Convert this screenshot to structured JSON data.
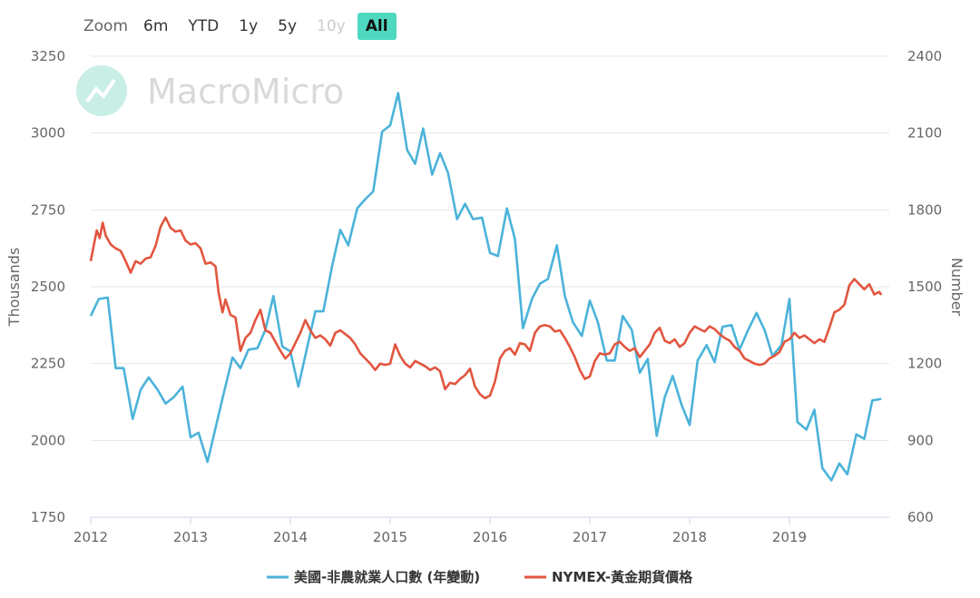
{
  "zoom": {
    "label": "Zoom",
    "buttons": [
      {
        "label": "6m",
        "state": "normal"
      },
      {
        "label": "YTD",
        "state": "normal"
      },
      {
        "label": "1y",
        "state": "normal"
      },
      {
        "label": "5y",
        "state": "normal"
      },
      {
        "label": "10y",
        "state": "disabled"
      },
      {
        "label": "All",
        "state": "active"
      }
    ]
  },
  "watermark": "MacroMicro",
  "colors": {
    "series1": "#4bb3d9",
    "series2": "#e2553f",
    "zoom_active": "#4fd8c0",
    "grid": "#e6e6e6"
  },
  "chart_data": {
    "type": "line",
    "title": "",
    "xlabel": "",
    "x_ticks": [
      "2012",
      "2013",
      "2014",
      "2015",
      "2016",
      "2017",
      "2018",
      "2019"
    ],
    "x_range": [
      2012.0,
      2020.0
    ],
    "y_left": {
      "label": "Thousands",
      "min": 1750,
      "max": 3250,
      "ticks": [
        1750,
        2000,
        2250,
        2500,
        2750,
        3000,
        3250
      ]
    },
    "y_right": {
      "label": "Number",
      "min": 600,
      "max": 2400,
      "ticks": [
        600,
        900,
        1200,
        1500,
        1800,
        2100,
        2400
      ]
    },
    "grid": true,
    "legend_position": "bottom",
    "series": [
      {
        "name": "美國-非農就業人口數 (年變動)",
        "axis": "left",
        "points": [
          [
            2012.0,
            2405
          ],
          [
            2012.08,
            2460
          ],
          [
            2012.17,
            2465
          ],
          [
            2012.25,
            2235
          ],
          [
            2012.33,
            2235
          ],
          [
            2012.42,
            2070
          ],
          [
            2012.5,
            2165
          ],
          [
            2012.58,
            2205
          ],
          [
            2012.67,
            2165
          ],
          [
            2012.75,
            2120
          ],
          [
            2012.83,
            2140
          ],
          [
            2012.92,
            2175
          ],
          [
            2013.0,
            2010
          ],
          [
            2013.08,
            2025
          ],
          [
            2013.17,
            1930
          ],
          [
            2013.25,
            2040
          ],
          [
            2013.33,
            2150
          ],
          [
            2013.42,
            2270
          ],
          [
            2013.5,
            2235
          ],
          [
            2013.58,
            2295
          ],
          [
            2013.67,
            2300
          ],
          [
            2013.75,
            2360
          ],
          [
            2013.83,
            2470
          ],
          [
            2013.92,
            2305
          ],
          [
            2014.0,
            2290
          ],
          [
            2014.08,
            2175
          ],
          [
            2014.17,
            2305
          ],
          [
            2014.25,
            2420
          ],
          [
            2014.33,
            2420
          ],
          [
            2014.42,
            2570
          ],
          [
            2014.5,
            2685
          ],
          [
            2014.58,
            2635
          ],
          [
            2014.67,
            2755
          ],
          [
            2014.75,
            2785
          ],
          [
            2014.83,
            2810
          ],
          [
            2014.92,
            3005
          ],
          [
            2015.0,
            3025
          ],
          [
            2015.08,
            3130
          ],
          [
            2015.17,
            2945
          ],
          [
            2015.25,
            2900
          ],
          [
            2015.33,
            3015
          ],
          [
            2015.42,
            2865
          ],
          [
            2015.5,
            2935
          ],
          [
            2015.58,
            2870
          ],
          [
            2015.67,
            2720
          ],
          [
            2015.75,
            2770
          ],
          [
            2015.83,
            2720
          ],
          [
            2015.92,
            2725
          ],
          [
            2016.0,
            2610
          ],
          [
            2016.08,
            2600
          ],
          [
            2016.17,
            2755
          ],
          [
            2016.25,
            2655
          ],
          [
            2016.33,
            2365
          ],
          [
            2016.42,
            2460
          ],
          [
            2016.5,
            2510
          ],
          [
            2016.58,
            2525
          ],
          [
            2016.67,
            2635
          ],
          [
            2016.75,
            2470
          ],
          [
            2016.83,
            2385
          ],
          [
            2016.92,
            2340
          ],
          [
            2017.0,
            2455
          ],
          [
            2017.08,
            2385
          ],
          [
            2017.17,
            2260
          ],
          [
            2017.25,
            2260
          ],
          [
            2017.33,
            2405
          ],
          [
            2017.42,
            2360
          ],
          [
            2017.5,
            2220
          ],
          [
            2017.58,
            2265
          ],
          [
            2017.67,
            2015
          ],
          [
            2017.75,
            2140
          ],
          [
            2017.83,
            2210
          ],
          [
            2017.92,
            2115
          ],
          [
            2018.0,
            2050
          ],
          [
            2018.08,
            2260
          ],
          [
            2018.17,
            2310
          ],
          [
            2018.25,
            2255
          ],
          [
            2018.33,
            2370
          ],
          [
            2018.42,
            2375
          ],
          [
            2018.5,
            2295
          ],
          [
            2018.58,
            2355
          ],
          [
            2018.67,
            2415
          ],
          [
            2018.75,
            2360
          ],
          [
            2018.83,
            2275
          ],
          [
            2018.92,
            2310
          ],
          [
            2019.0,
            2460
          ],
          [
            2019.08,
            2060
          ],
          [
            2019.17,
            2035
          ],
          [
            2019.25,
            2100
          ],
          [
            2019.33,
            1910
          ],
          [
            2019.42,
            1870
          ],
          [
            2019.5,
            1925
          ],
          [
            2019.58,
            1890
          ],
          [
            2019.67,
            2020
          ],
          [
            2019.75,
            2005
          ],
          [
            2019.83,
            2130
          ],
          [
            2019.92,
            2135
          ]
        ]
      },
      {
        "name": "NYMEX-黃金期貨價格",
        "axis": "right",
        "points": [
          [
            2012.0,
            1600
          ],
          [
            2012.03,
            1660
          ],
          [
            2012.06,
            1720
          ],
          [
            2012.09,
            1690
          ],
          [
            2012.12,
            1750
          ],
          [
            2012.15,
            1700
          ],
          [
            2012.2,
            1665
          ],
          [
            2012.25,
            1650
          ],
          [
            2012.3,
            1640
          ],
          [
            2012.35,
            1600
          ],
          [
            2012.4,
            1555
          ],
          [
            2012.45,
            1600
          ],
          [
            2012.5,
            1590
          ],
          [
            2012.55,
            1610
          ],
          [
            2012.6,
            1615
          ],
          [
            2012.65,
            1660
          ],
          [
            2012.7,
            1735
          ],
          [
            2012.75,
            1770
          ],
          [
            2012.8,
            1730
          ],
          [
            2012.85,
            1715
          ],
          [
            2012.9,
            1720
          ],
          [
            2012.95,
            1680
          ],
          [
            2013.0,
            1665
          ],
          [
            2013.05,
            1670
          ],
          [
            2013.1,
            1650
          ],
          [
            2013.15,
            1590
          ],
          [
            2013.2,
            1595
          ],
          [
            2013.25,
            1580
          ],
          [
            2013.28,
            1480
          ],
          [
            2013.32,
            1400
          ],
          [
            2013.35,
            1450
          ],
          [
            2013.4,
            1390
          ],
          [
            2013.45,
            1380
          ],
          [
            2013.5,
            1250
          ],
          [
            2013.55,
            1300
          ],
          [
            2013.6,
            1320
          ],
          [
            2013.65,
            1370
          ],
          [
            2013.7,
            1410
          ],
          [
            2013.75,
            1330
          ],
          [
            2013.8,
            1320
          ],
          [
            2013.85,
            1285
          ],
          [
            2013.9,
            1250
          ],
          [
            2013.95,
            1220
          ],
          [
            2014.0,
            1240
          ],
          [
            2014.05,
            1280
          ],
          [
            2014.1,
            1320
          ],
          [
            2014.15,
            1370
          ],
          [
            2014.2,
            1330
          ],
          [
            2014.25,
            1300
          ],
          [
            2014.3,
            1310
          ],
          [
            2014.35,
            1295
          ],
          [
            2014.4,
            1270
          ],
          [
            2014.45,
            1320
          ],
          [
            2014.5,
            1330
          ],
          [
            2014.55,
            1315
          ],
          [
            2014.6,
            1300
          ],
          [
            2014.65,
            1275
          ],
          [
            2014.7,
            1240
          ],
          [
            2014.75,
            1220
          ],
          [
            2014.8,
            1200
          ],
          [
            2014.85,
            1175
          ],
          [
            2014.9,
            1200
          ],
          [
            2014.95,
            1195
          ],
          [
            2015.0,
            1200
          ],
          [
            2015.05,
            1275
          ],
          [
            2015.1,
            1230
          ],
          [
            2015.15,
            1200
          ],
          [
            2015.2,
            1185
          ],
          [
            2015.25,
            1210
          ],
          [
            2015.3,
            1200
          ],
          [
            2015.35,
            1190
          ],
          [
            2015.4,
            1175
          ],
          [
            2015.45,
            1185
          ],
          [
            2015.5,
            1170
          ],
          [
            2015.55,
            1100
          ],
          [
            2015.6,
            1125
          ],
          [
            2015.65,
            1120
          ],
          [
            2015.7,
            1140
          ],
          [
            2015.75,
            1155
          ],
          [
            2015.8,
            1180
          ],
          [
            2015.85,
            1110
          ],
          [
            2015.9,
            1080
          ],
          [
            2015.95,
            1065
          ],
          [
            2016.0,
            1075
          ],
          [
            2016.05,
            1130
          ],
          [
            2016.1,
            1220
          ],
          [
            2016.15,
            1250
          ],
          [
            2016.2,
            1260
          ],
          [
            2016.25,
            1235
          ],
          [
            2016.3,
            1280
          ],
          [
            2016.35,
            1275
          ],
          [
            2016.4,
            1250
          ],
          [
            2016.45,
            1320
          ],
          [
            2016.5,
            1345
          ],
          [
            2016.55,
            1350
          ],
          [
            2016.6,
            1345
          ],
          [
            2016.65,
            1325
          ],
          [
            2016.7,
            1330
          ],
          [
            2016.75,
            1300
          ],
          [
            2016.8,
            1265
          ],
          [
            2016.85,
            1225
          ],
          [
            2016.9,
            1175
          ],
          [
            2016.95,
            1140
          ],
          [
            2017.0,
            1150
          ],
          [
            2017.05,
            1210
          ],
          [
            2017.1,
            1240
          ],
          [
            2017.15,
            1235
          ],
          [
            2017.2,
            1240
          ],
          [
            2017.25,
            1275
          ],
          [
            2017.3,
            1285
          ],
          [
            2017.35,
            1265
          ],
          [
            2017.4,
            1250
          ],
          [
            2017.45,
            1260
          ],
          [
            2017.5,
            1225
          ],
          [
            2017.55,
            1250
          ],
          [
            2017.6,
            1275
          ],
          [
            2017.65,
            1320
          ],
          [
            2017.7,
            1340
          ],
          [
            2017.75,
            1290
          ],
          [
            2017.8,
            1280
          ],
          [
            2017.85,
            1295
          ],
          [
            2017.9,
            1265
          ],
          [
            2017.95,
            1280
          ],
          [
            2018.0,
            1320
          ],
          [
            2018.05,
            1345
          ],
          [
            2018.1,
            1335
          ],
          [
            2018.15,
            1325
          ],
          [
            2018.2,
            1345
          ],
          [
            2018.25,
            1335
          ],
          [
            2018.3,
            1315
          ],
          [
            2018.35,
            1300
          ],
          [
            2018.4,
            1290
          ],
          [
            2018.45,
            1265
          ],
          [
            2018.5,
            1250
          ],
          [
            2018.55,
            1220
          ],
          [
            2018.6,
            1210
          ],
          [
            2018.65,
            1200
          ],
          [
            2018.7,
            1195
          ],
          [
            2018.75,
            1200
          ],
          [
            2018.8,
            1220
          ],
          [
            2018.85,
            1230
          ],
          [
            2018.9,
            1245
          ],
          [
            2018.95,
            1285
          ],
          [
            2019.0,
            1295
          ],
          [
            2019.05,
            1320
          ],
          [
            2019.1,
            1300
          ],
          [
            2019.15,
            1310
          ],
          [
            2019.2,
            1295
          ],
          [
            2019.25,
            1280
          ],
          [
            2019.3,
            1295
          ],
          [
            2019.35,
            1285
          ],
          [
            2019.4,
            1340
          ],
          [
            2019.45,
            1400
          ],
          [
            2019.5,
            1410
          ],
          [
            2019.55,
            1430
          ],
          [
            2019.6,
            1505
          ],
          [
            2019.65,
            1530
          ],
          [
            2019.7,
            1510
          ],
          [
            2019.75,
            1490
          ],
          [
            2019.8,
            1510
          ],
          [
            2019.85,
            1470
          ],
          [
            2019.9,
            1480
          ],
          [
            2019.92,
            1468
          ]
        ]
      }
    ]
  }
}
